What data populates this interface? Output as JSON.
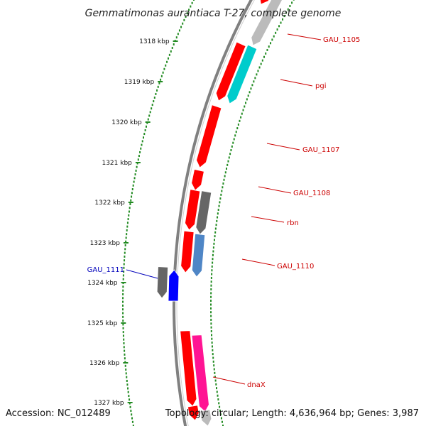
{
  "title": "Gemmatimonas aurantiaca T-27, complete genome",
  "accession": "Accession: NC_012489",
  "topology": "Topology: circular; Length: 4,636,964 bp; Genes: 3,987",
  "ticks": [
    "1318 kbp",
    "1319 kbp",
    "1320 kbp",
    "1321 kbp",
    "1322 kbp",
    "1323 kbp",
    "1324 kbp",
    "1325 kbp",
    "1326 kbp",
    "1327 kbp"
  ],
  "labels": [
    {
      "text": "GAU_1105",
      "color": "#cc0000"
    },
    {
      "text": "pgi",
      "color": "#cc0000"
    },
    {
      "text": "GAU_1107",
      "color": "#cc0000"
    },
    {
      "text": "GAU_1108",
      "color": "#cc0000"
    },
    {
      "text": "rbn",
      "color": "#cc0000"
    },
    {
      "text": "GAU_1110",
      "color": "#cc0000"
    },
    {
      "text": "GAU_1111",
      "color": "#0000bb"
    },
    {
      "text": "dnaX",
      "color": "#cc0000"
    }
  ],
  "colors": {
    "backbone": "#808080",
    "dots_inner": "#228b22",
    "dots_outer": "#228b22",
    "tick_mark": "#228b22",
    "red": "#ff0000",
    "cyan": "#00cccc",
    "gray": "#bbbbbb",
    "darkgray": "#666666",
    "blue": "#0000ff",
    "steel": "#4f86c6",
    "pink": "#ff1493",
    "label_red": "#cc0000",
    "label_blue": "#0000bb"
  }
}
